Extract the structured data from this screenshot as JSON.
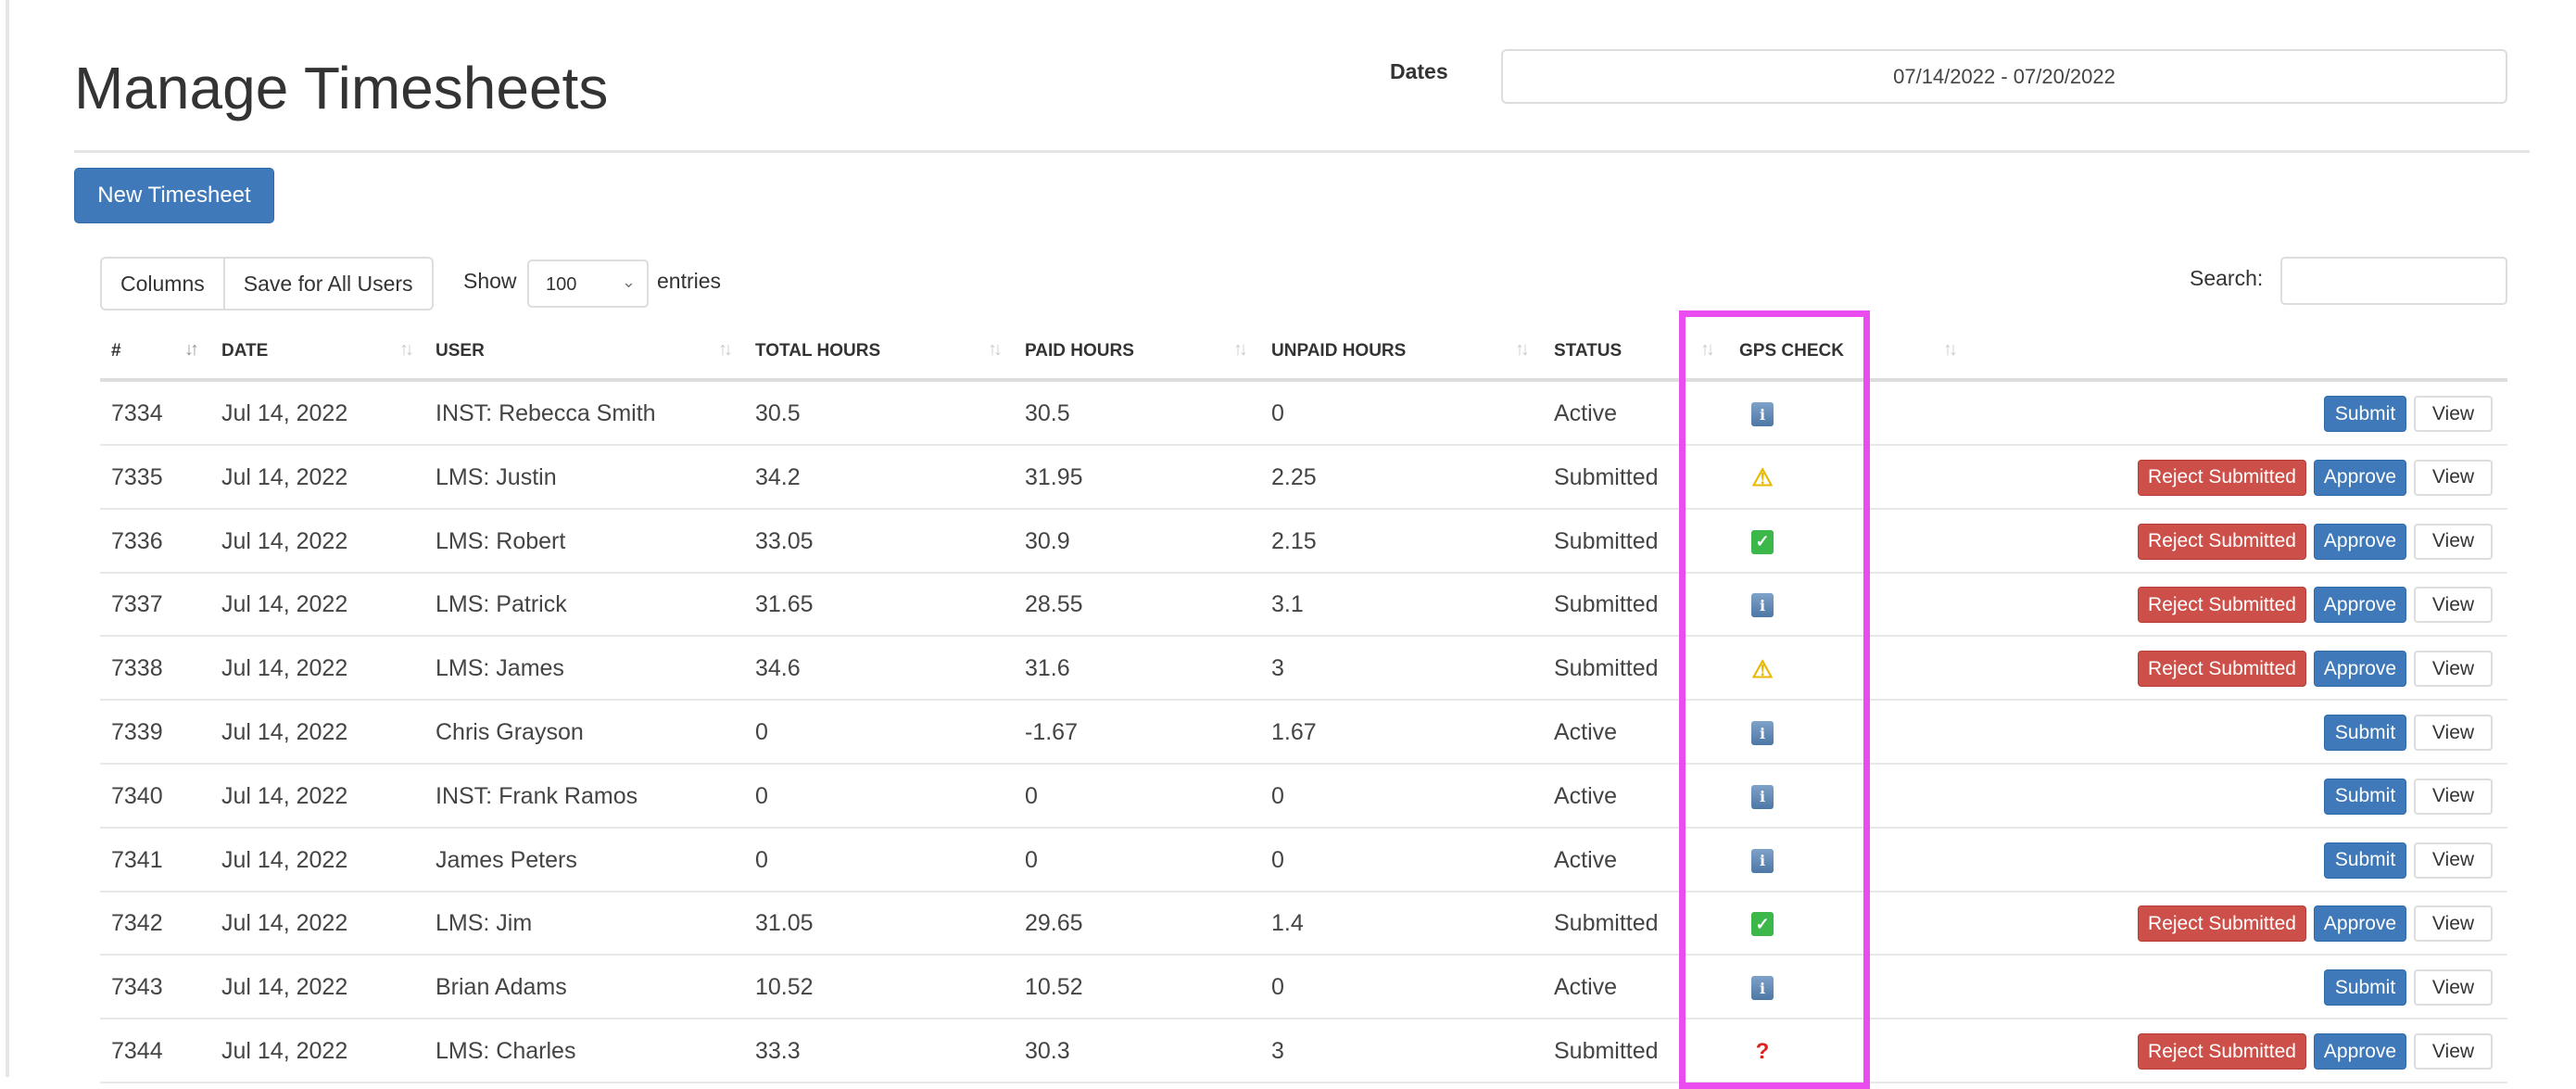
{
  "page": {
    "title": "Manage Timesheets",
    "dates_label": "Dates",
    "date_range": "07/14/2022 - 07/20/2022",
    "new_button": "New Timesheet"
  },
  "toolbar": {
    "columns": "Columns",
    "save_all": "Save for All Users",
    "show": "Show",
    "entries_value": "100",
    "entries": "entries",
    "search_label": "Search:",
    "search_value": ""
  },
  "headers": [
    "#",
    "DATE",
    "USER",
    "TOTAL HOURS",
    "PAID HOURS",
    "UNPAID HOURS",
    "STATUS",
    "GPS CHECK"
  ],
  "buttons": {
    "submit": "Submit",
    "view": "View",
    "approve": "Approve",
    "reject": "Reject Submitted"
  },
  "gps_glyphs": {
    "info": "i",
    "warning": "⚠",
    "ok": "✓",
    "unknown": "?"
  },
  "rows": [
    {
      "id": "7334",
      "date": "Jul 14, 2022",
      "user": "INST: Rebecca Smith",
      "total": "30.5",
      "paid": "30.5",
      "unpaid": "0",
      "status": "Active",
      "gps": "info"
    },
    {
      "id": "7335",
      "date": "Jul 14, 2022",
      "user": "LMS: Justin",
      "total": "34.2",
      "paid": "31.95",
      "unpaid": "2.25",
      "status": "Submitted",
      "gps": "warning"
    },
    {
      "id": "7336",
      "date": "Jul 14, 2022",
      "user": "LMS: Robert",
      "total": "33.05",
      "paid": "30.9",
      "unpaid": "2.15",
      "status": "Submitted",
      "gps": "ok"
    },
    {
      "id": "7337",
      "date": "Jul 14, 2022",
      "user": "LMS: Patrick",
      "total": "31.65",
      "paid": "28.55",
      "unpaid": "3.1",
      "status": "Submitted",
      "gps": "info"
    },
    {
      "id": "7338",
      "date": "Jul 14, 2022",
      "user": "LMS: James",
      "total": "34.6",
      "paid": "31.6",
      "unpaid": "3",
      "status": "Submitted",
      "gps": "warning"
    },
    {
      "id": "7339",
      "date": "Jul 14, 2022",
      "user": "Chris Grayson",
      "total": "0",
      "paid": "-1.67",
      "unpaid": "1.67",
      "status": "Active",
      "gps": "info"
    },
    {
      "id": "7340",
      "date": "Jul 14, 2022",
      "user": "INST: Frank Ramos",
      "total": "0",
      "paid": "0",
      "unpaid": "0",
      "status": "Active",
      "gps": "info"
    },
    {
      "id": "7341",
      "date": "Jul 14, 2022",
      "user": "James Peters",
      "total": "0",
      "paid": "0",
      "unpaid": "0",
      "status": "Active",
      "gps": "info"
    },
    {
      "id": "7342",
      "date": "Jul 14, 2022",
      "user": "LMS: Jim",
      "total": "31.05",
      "paid": "29.65",
      "unpaid": "1.4",
      "status": "Submitted",
      "gps": "ok"
    },
    {
      "id": "7343",
      "date": "Jul 14, 2022",
      "user": "Brian Adams",
      "total": "10.52",
      "paid": "10.52",
      "unpaid": "0",
      "status": "Active",
      "gps": "info"
    },
    {
      "id": "7344",
      "date": "Jul 14, 2022",
      "user": "LMS: Charles",
      "total": "33.3",
      "paid": "30.3",
      "unpaid": "3",
      "status": "Submitted",
      "gps": "unknown"
    }
  ],
  "colors": {
    "primary": "#3f79b9",
    "danger": "#cd4f49",
    "highlight": "#ea4cf0"
  }
}
